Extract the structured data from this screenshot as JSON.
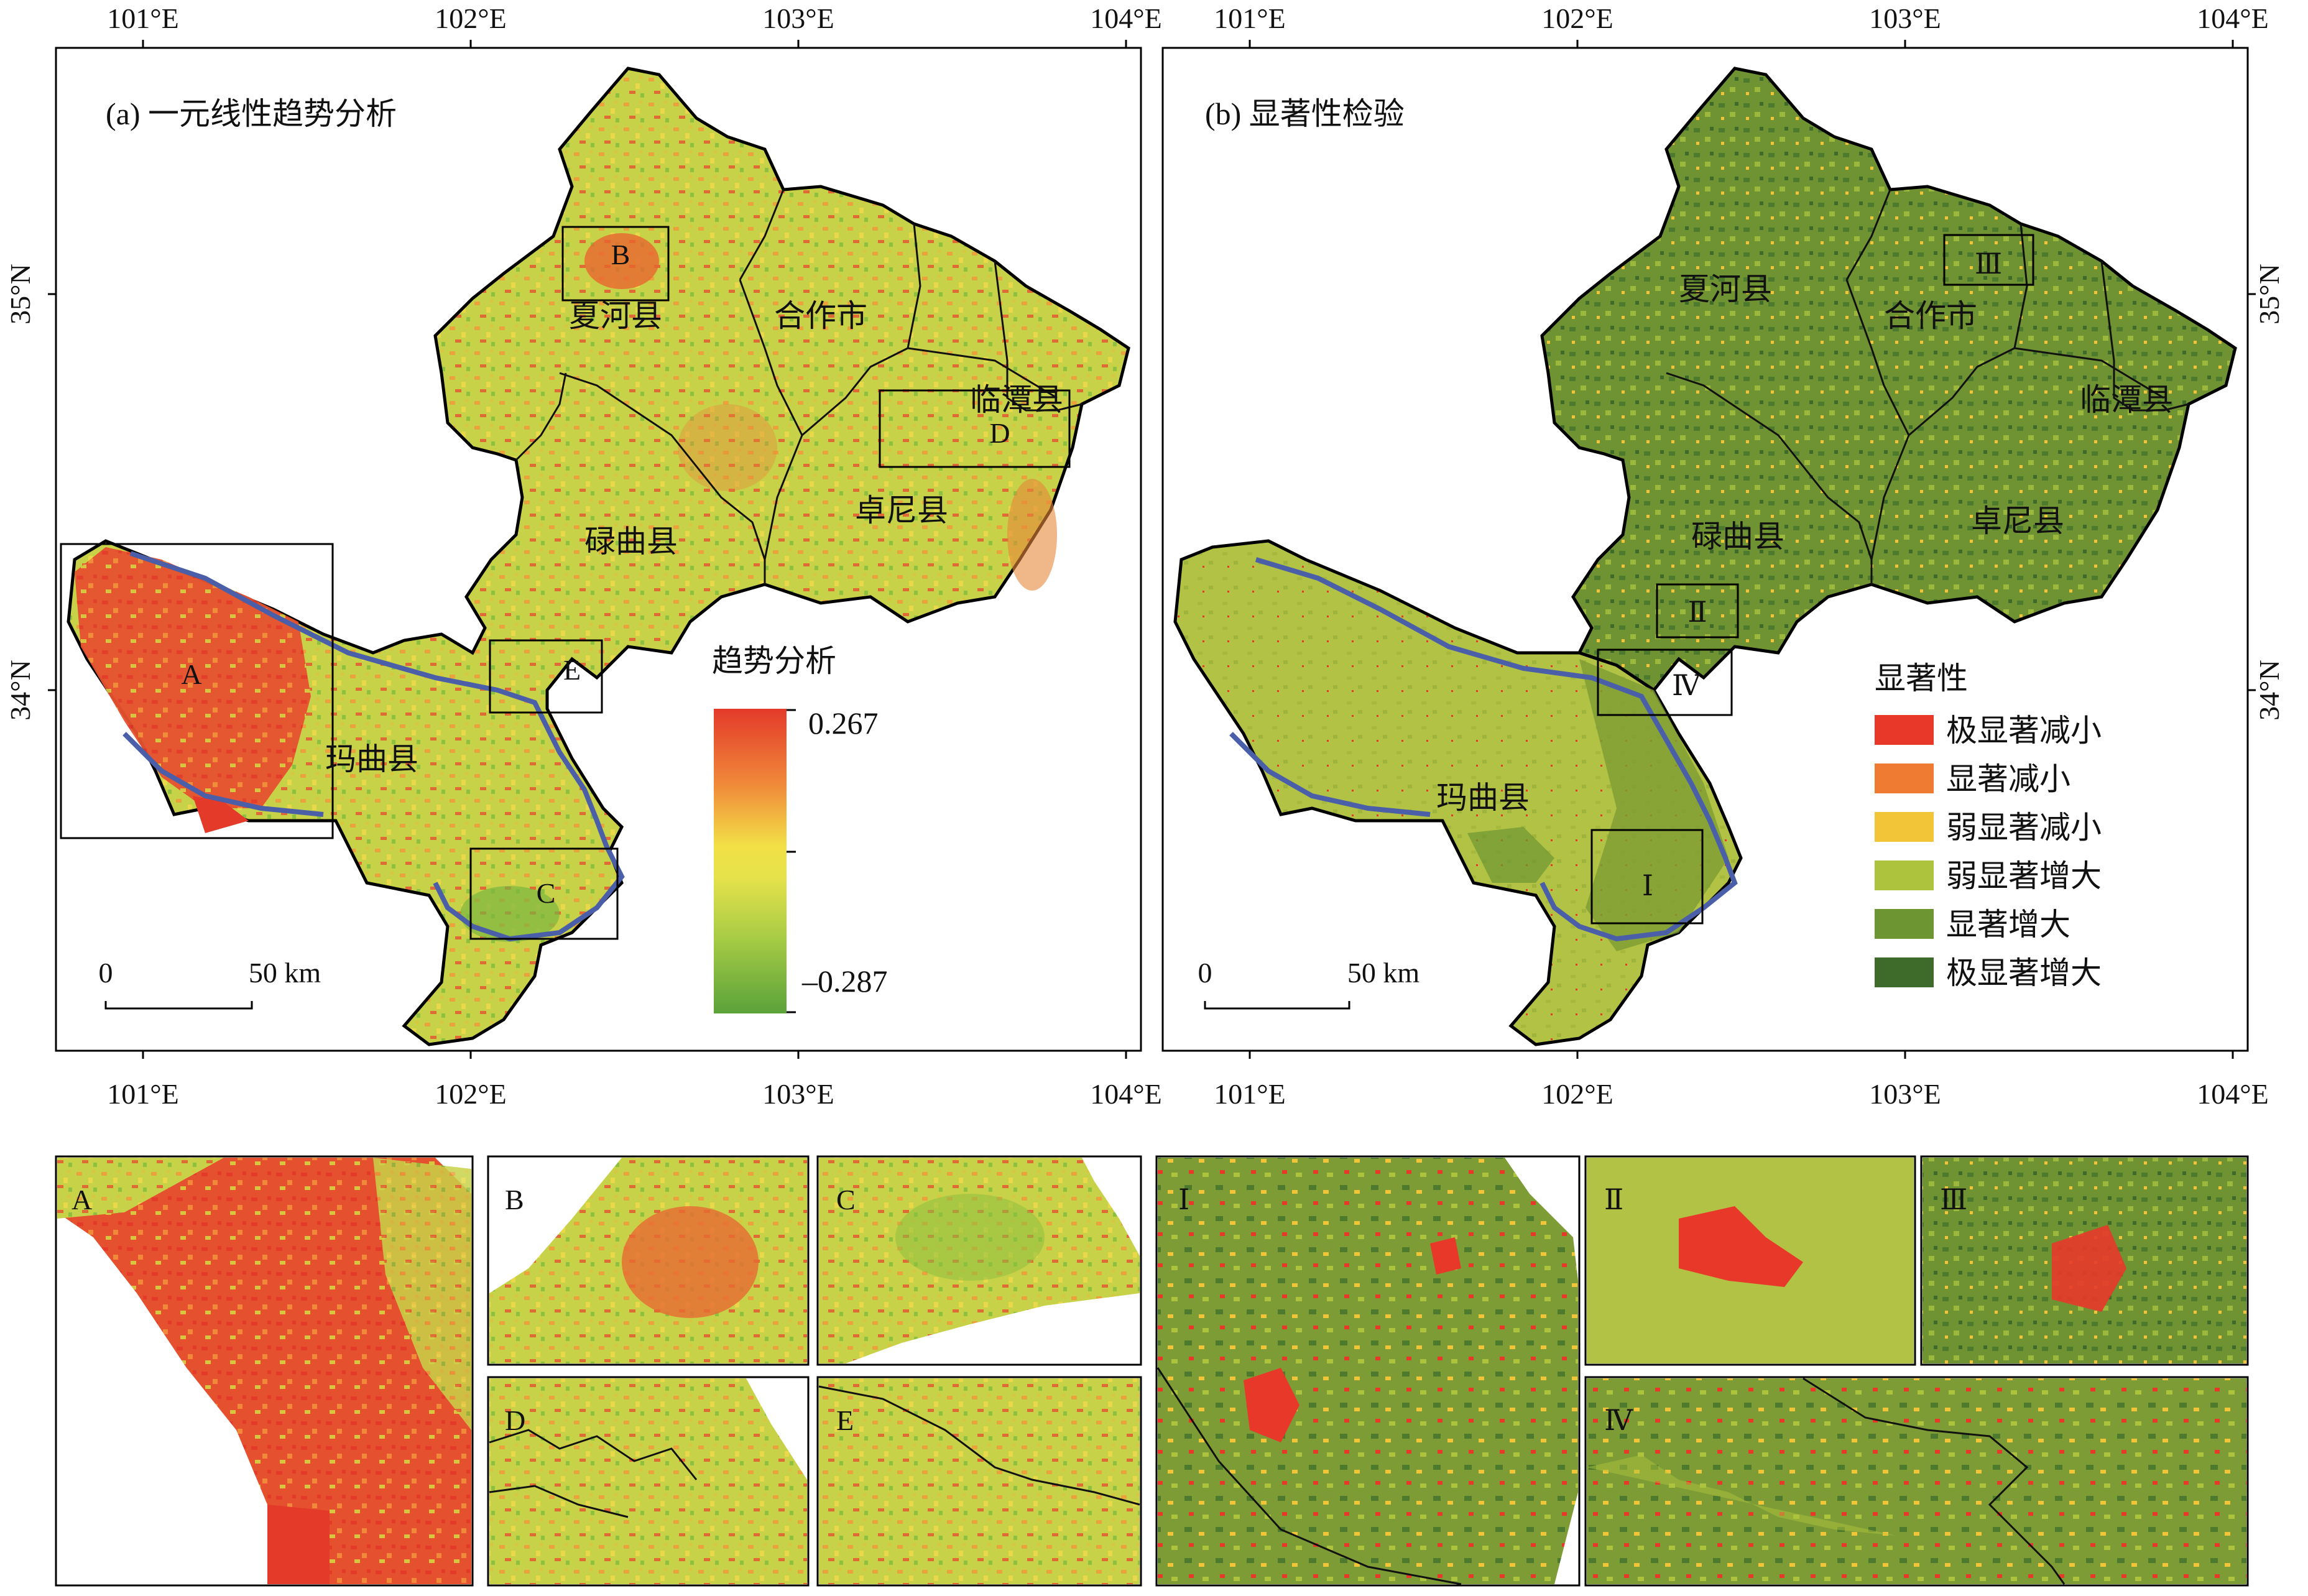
{
  "map_a": {
    "title": "(a) 一元线性趋势分析",
    "legend_title": "趋势分析",
    "legend_max": "0.267",
    "legend_min": "–0.287",
    "scale_zero": "0",
    "scale_label": "50 km",
    "counties": [
      "夏河县",
      "合作市",
      "临潭县",
      "卓尼县",
      "碌曲县",
      "玛曲县"
    ],
    "zoom_boxes": [
      "A",
      "B",
      "C",
      "D",
      "E"
    ]
  },
  "map_b": {
    "title": "(b) 显著性检验",
    "legend_title": "显著性",
    "legend": [
      {
        "label": "极显著减小",
        "color": "#e8382a"
      },
      {
        "label": "显著减小",
        "color": "#ef7a32"
      },
      {
        "label": "弱显著减小",
        "color": "#f2c437"
      },
      {
        "label": "弱显著增大",
        "color": "#adc23d"
      },
      {
        "label": "显著增大",
        "color": "#6d9633"
      },
      {
        "label": "极显著增大",
        "color": "#3f6b2a"
      }
    ],
    "scale_zero": "0",
    "scale_label": "50 km",
    "counties": [
      "夏河县",
      "合作市",
      "临潭县",
      "卓尼县",
      "碌曲县",
      "玛曲县"
    ],
    "zoom_boxes": [
      "Ⅰ",
      "Ⅱ",
      "Ⅲ",
      "Ⅳ"
    ]
  },
  "axes": {
    "lon_labels": [
      "101°E",
      "102°E",
      "103°E",
      "104°E"
    ],
    "lat_labels": [
      "35°N",
      "34°N"
    ]
  },
  "insets": [
    "A",
    "B",
    "C",
    "D",
    "E",
    "Ⅰ",
    "Ⅱ",
    "Ⅲ",
    "Ⅳ"
  ],
  "colors": {
    "trend_high": "#e33a2a",
    "trend_mid": "#f3e046",
    "trend_low": "#5aa23a",
    "base_a": "#c9d24a",
    "base_b": "#6f9232",
    "south_b": "#b2c244",
    "river": "#4a5fa8"
  }
}
